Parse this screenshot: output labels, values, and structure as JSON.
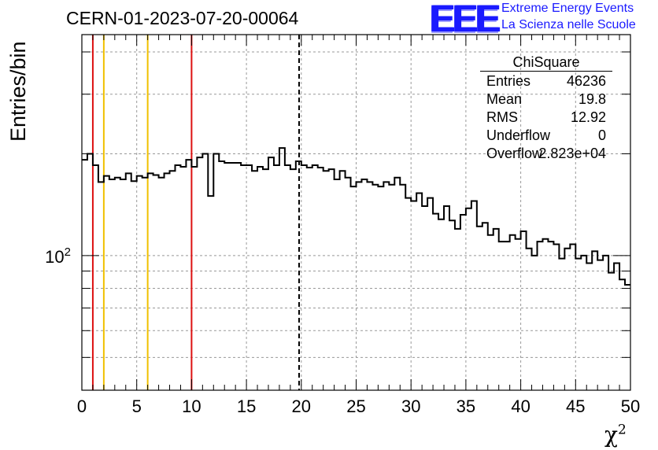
{
  "header": {
    "run_title": "CERN-01-2023-07-20-00064",
    "logo_mark": "EEE",
    "logo_line1": "Extreme Energy Events",
    "logo_line2": "La Scienza nelle Scuole"
  },
  "colors": {
    "histogram": "#000000",
    "red_lines": "#dd1111",
    "yellow_lines": "#f0c000",
    "logo": "#1a1aff",
    "grid": "#999999"
  },
  "stats": {
    "title": "ChiSquare",
    "rows": [
      {
        "key": "Entries",
        "value": "46236"
      },
      {
        "key": "Mean",
        "value": "19.8"
      },
      {
        "key": "RMS",
        "value": "12.92"
      },
      {
        "key": "Underflow",
        "value": "0"
      },
      {
        "key": "Overflow",
        "value": "2.823e+04"
      }
    ]
  },
  "chart_data": {
    "type": "histogram",
    "xlabel": "χ",
    "xlabel_sup": "2",
    "ylabel": "Entries/bin",
    "xlim": [
      0,
      50
    ],
    "ylim": [
      40,
      450
    ],
    "yscale": "log",
    "bin_width": 0.5,
    "grid": true,
    "xticks": [
      0,
      5,
      10,
      15,
      20,
      25,
      30,
      35,
      40,
      45,
      50
    ],
    "xtick_labels": [
      "0",
      "5",
      "10",
      "15",
      "20",
      "25",
      "30",
      "35",
      "40",
      "45",
      "50"
    ],
    "ytick_label": {
      "base": "10",
      "exp": "2",
      "value": 100
    },
    "counts": [
      192,
      200,
      185,
      165,
      172,
      168,
      170,
      168,
      175,
      166,
      172,
      170,
      175,
      173,
      170,
      175,
      178,
      185,
      183,
      192,
      183,
      195,
      200,
      150,
      200,
      190,
      188,
      188,
      188,
      185,
      185,
      178,
      183,
      180,
      195,
      185,
      208,
      185,
      180,
      190,
      185,
      182,
      185,
      182,
      178,
      180,
      168,
      178,
      170,
      160,
      165,
      168,
      165,
      162,
      160,
      165,
      162,
      170,
      162,
      148,
      145,
      153,
      140,
      148,
      133,
      128,
      140,
      127,
      120,
      132,
      138,
      145,
      122,
      125,
      115,
      120,
      110,
      110,
      115,
      112,
      118,
      105,
      100,
      110,
      112,
      110,
      108,
      98,
      105,
      108,
      98,
      100,
      95,
      103,
      97,
      100,
      89,
      95,
      85,
      82
    ],
    "vertical_lines": [
      {
        "x": 1,
        "color": "red"
      },
      {
        "x": 2,
        "color": "yellow"
      },
      {
        "x": 6,
        "color": "yellow"
      },
      {
        "x": 10,
        "color": "red"
      },
      {
        "x": 19.8,
        "color": "black",
        "style": "dashed"
      }
    ]
  }
}
